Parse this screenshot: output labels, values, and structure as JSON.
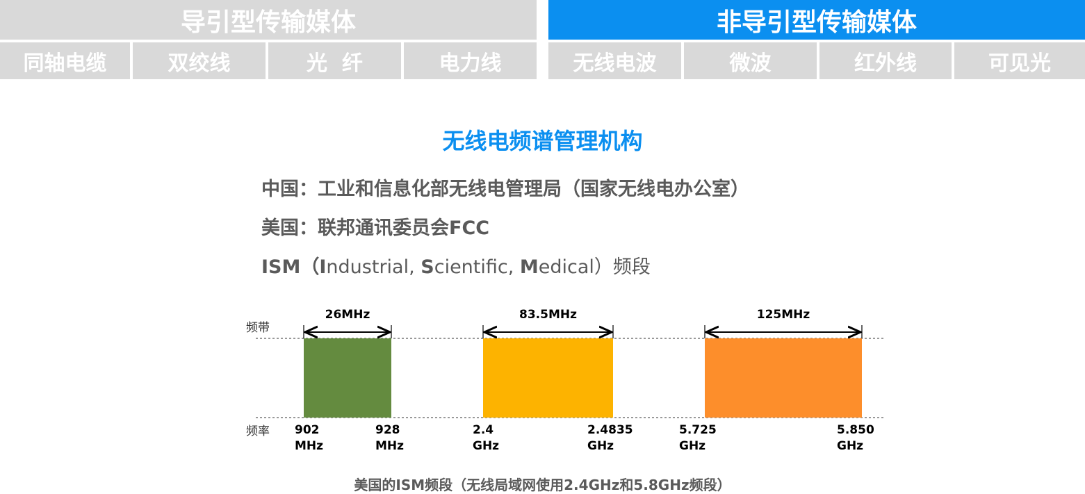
{
  "header": {
    "guided_title": "导引型传输媒体",
    "unguided_title": "非导引型传输媒体",
    "cells": [
      "同轴电缆",
      "双绞线",
      "光  纤",
      "电力线",
      "无线电波",
      "微波",
      "红外线",
      "可见光"
    ]
  },
  "section_title": "无线电频谱管理机构",
  "lines": {
    "china": "中国：工业和信息化部无线电管理局（国家无线电办公室）",
    "usa": "美国：联邦通讯委员会FCC",
    "ism": {
      "a": "ISM（",
      "b1": "I",
      "c1": "ndustrial, ",
      "b2": "S",
      "c2": "cientific, ",
      "b3": "M",
      "c3": "edical）频段"
    }
  },
  "diagram": {
    "band_label": "频带",
    "freq_label": "频率",
    "bands": [
      {
        "width_label": "26MHz",
        "low": [
          "902",
          "MHz"
        ],
        "high": [
          "928",
          "MHz"
        ],
        "color": "#648b3f"
      },
      {
        "width_label": "83.5MHz",
        "low": [
          "2.4",
          "GHz"
        ],
        "high": [
          "2.4835",
          "GHz"
        ],
        "color": "#fdb300"
      },
      {
        "width_label": "125MHz",
        "low": [
          "5.725",
          "GHz"
        ],
        "high": [
          "5.850",
          "GHz"
        ],
        "color": "#fd8e2b"
      }
    ]
  },
  "caption": "美国的ISM频段（无线局域网使用2.4GHz和5.8GHz频段）"
}
